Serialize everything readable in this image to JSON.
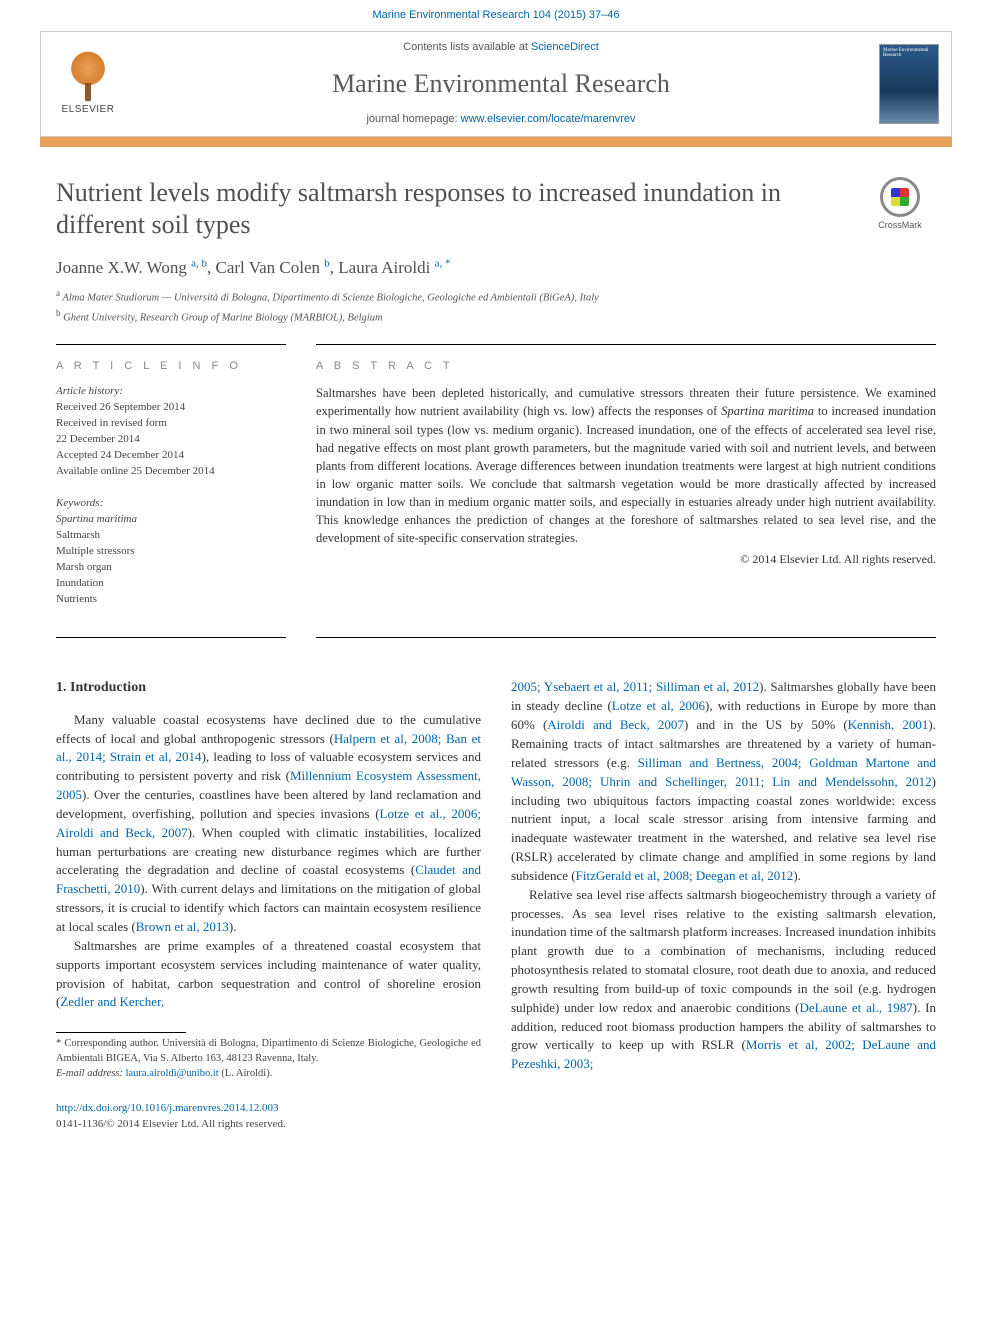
{
  "citation": "Marine Environmental Research 104 (2015) 37–46",
  "publisher": {
    "logo_label": "ELSEVIER",
    "contents_prefix": "Contents lists available at ",
    "contents_link": "ScienceDirect",
    "journal_name": "Marine Environmental Research",
    "homepage_prefix": "journal homepage: ",
    "homepage_url": "www.elsevier.com/locate/marenvrev",
    "cover_label": "Marine Environmental Research"
  },
  "colors": {
    "orange_rule": "#e8a05a",
    "link": "#0066aa",
    "text_muted": "#505050"
  },
  "crossmark_label": "CrossMark",
  "article": {
    "title": "Nutrient levels modify saltmarsh responses to increased inundation in different soil types",
    "authors_html": "Joanne X.W. Wong <sup>a, b</sup>, Carl Van Colen <sup>b</sup>, Laura Airoldi <sup>a, *</sup>",
    "affiliations": [
      {
        "sup": "a",
        "text": "Alma Mater Studiorum — Università di Bologna, Dipartimento di Scienze Biologiche, Geologiche ed Ambientali (BiGeA), Italy"
      },
      {
        "sup": "b",
        "text": "Ghent University, Research Group of Marine Biology (MARBIOL), Belgium"
      }
    ]
  },
  "info": {
    "section_label": "A R T I C L E   I N F O",
    "history_label": "Article history:",
    "history": [
      "Received 26 September 2014",
      "Received in revised form",
      "22 December 2014",
      "Accepted 24 December 2014",
      "Available online 25 December 2014"
    ],
    "keywords_label": "Keywords:",
    "keywords": [
      "Spartina maritima",
      "Saltmarsh",
      "Multiple stressors",
      "Marsh organ",
      "Inundation",
      "Nutrients"
    ]
  },
  "abstract": {
    "section_label": "A B S T R A C T",
    "text_parts": [
      "Saltmarshes have been depleted historically, and cumulative stressors threaten their future persistence. We examined experimentally how nutrient availability (high vs. low) affects the responses of ",
      "Spartina maritima",
      " to increased inundation in two mineral soil types (low vs. medium organic). Increased inundation, one of the effects of accelerated sea level rise, had negative effects on most plant growth parameters, but the magnitude varied with soil and nutrient levels, and between plants from different locations. Average differences between inundation treatments were largest at high nutrient conditions in low organic matter soils. We conclude that saltmarsh vegetation would be more drastically affected by increased inundation in low than in medium organic matter soils, and especially in estuaries already under high nutrient availability. This knowledge enhances the prediction of changes at the foreshore of saltmarshes related to sea level rise, and the development of site-specific conservation strategies."
    ],
    "copyright": "© 2014 Elsevier Ltd. All rights reserved."
  },
  "body": {
    "heading": "1.  Introduction",
    "col1_paras": [
      "Many valuable coastal ecosystems have declined due to the cumulative effects of local and global anthropogenic stressors (<span class=\"cite\">Halpern et al, 2008; Ban et al., 2014; Strain et al, 2014</span>), leading to loss of valuable ecosystem services and contributing to persistent poverty and risk (<span class=\"cite\">Millennium Ecosystem Assessment, 2005</span>). Over the centuries, coastlines have been altered by land reclamation and development, overfishing, pollution and species invasions (<span class=\"cite\">Lotze et al., 2006; Airoldi and Beck, 2007</span>). When coupled with climatic instabilities, localized human perturbations are creating new disturbance regimes which are further accelerating the degradation and decline of coastal ecosystems (<span class=\"cite\">Claudet and Fraschetti, 2010</span>). With current delays and limitations on the mitigation of global stressors, it is crucial to identify which factors can maintain ecosystem resilience at local scales (<span class=\"cite\">Brown et al, 2013</span>).",
      "Saltmarshes are prime examples of a threatened coastal ecosystem that supports important ecosystem services including maintenance of water quality, provision of habitat, carbon sequestration and control of shoreline erosion (<span class=\"cite\">Zedler and Kercher,</span>"
    ],
    "col2_paras": [
      "<span class=\"cite\">2005; Ysebaert et al, 2011; Silliman et al, 2012</span>). Saltmarshes globally have been in steady decline (<span class=\"cite\">Lotze et al, 2006</span>), with reductions in Europe by more than 60% (<span class=\"cite\">Airoldi and Beck, 2007</span>) and in the US by 50% (<span class=\"cite\">Kennish, 2001</span>). Remaining tracts of intact saltmarshes are threatened by a variety of human-related stressors (e.g. <span class=\"cite\">Silliman and Bertness, 2004; Goldman Martone and Wasson, 2008; Uhrin and Schellinger, 2011; Lin and Mendelssohn, 2012</span>) including two ubiquitous factors impacting coastal zones worldwide: excess nutrient input, a local scale stressor arising from intensive farming and inadequate wastewater treatment in the watershed, and relative sea level rise (RSLR) accelerated by climate change and amplified in some regions by land subsidence (<span class=\"cite\">FitzGerald et al, 2008; Deegan et al, 2012</span>).",
      "Relative sea level rise affects saltmarsh biogeochemistry through a variety of processes. As sea level rises relative to the existing saltmarsh elevation, inundation time of the saltmarsh platform increases. Increased inundation inhibits plant growth due to a combination of mechanisms, including reduced photosynthesis related to stomatal closure, root death due to anoxia, and reduced growth resulting from build-up of toxic compounds in the soil (e.g. hydrogen sulphide) under low redox and anaerobic conditions (<span class=\"cite\">DeLaune et al., 1987</span>). In addition, reduced root biomass production hampers the ability of saltmarshes to grow vertically to keep up with RSLR (<span class=\"cite\">Morris et al, 2002; DeLaune and Pezeshki, 2003;</span>"
    ]
  },
  "footnote": {
    "corresponding": "* Corresponding author. Università di Bologna, Dipartimento di Scienze Biologiche, Geologiche ed Ambientali BIGEA, Via S. Alberto 163, 48123 Ravenna, Italy.",
    "email_label": "E-mail address:",
    "email": "laura.airoldi@unibo.it",
    "email_suffix": "(L. Airoldi)."
  },
  "footer": {
    "doi": "http://dx.doi.org/10.1016/j.marenvres.2014.12.003",
    "issn_line": "0141-1136/© 2014 Elsevier Ltd. All rights reserved."
  }
}
